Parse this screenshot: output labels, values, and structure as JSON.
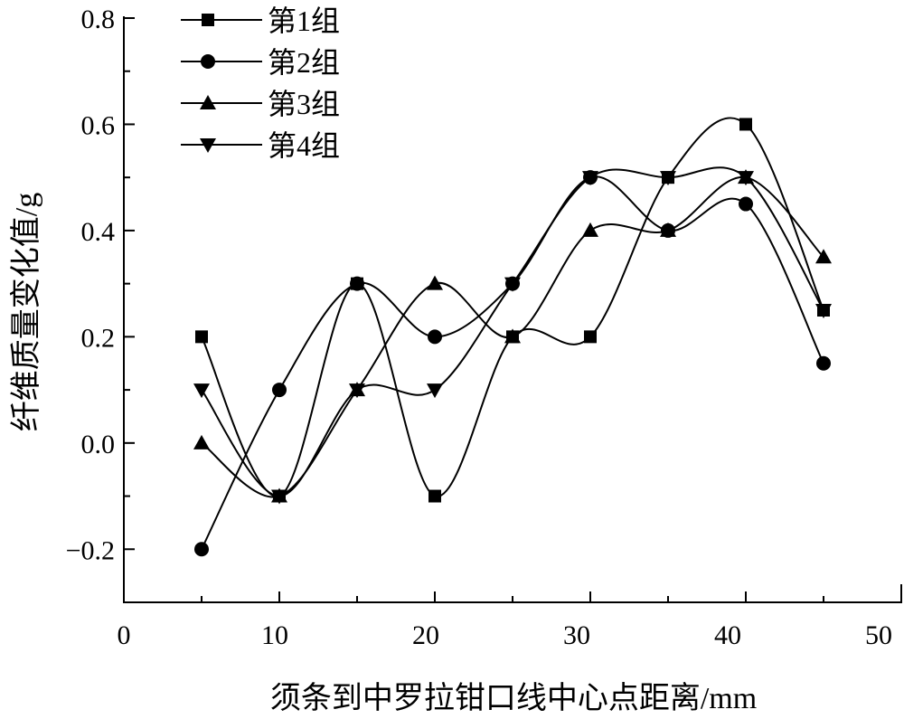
{
  "chart_data": {
    "type": "line",
    "title": "",
    "xlabel": "须条到中罗拉钳口线中心点距离/mm",
    "ylabel": "纤维质量变化值/g",
    "xlim": [
      0,
      50
    ],
    "ylim": [
      -0.3,
      0.8
    ],
    "xticks": [
      "0",
      "10",
      "20",
      "30",
      "40",
      "50"
    ],
    "yticks": [
      "0.8",
      "0.6",
      "0.4",
      "0.2",
      "0.0",
      "−0.2"
    ],
    "grid": false,
    "legend_position": "top-left",
    "smooth": true,
    "x": [
      5,
      10,
      15,
      20,
      25,
      30,
      35,
      40,
      45
    ],
    "series": [
      {
        "name": "第1组",
        "marker": "square",
        "values": [
          0.2,
          -0.1,
          0.3,
          -0.1,
          0.2,
          0.2,
          0.5,
          0.6,
          0.25
        ]
      },
      {
        "name": "第2组",
        "marker": "circle",
        "values": [
          -0.2,
          0.1,
          0.3,
          0.2,
          0.3,
          0.5,
          0.4,
          0.45,
          0.15
        ]
      },
      {
        "name": "第3组",
        "marker": "triangle-up",
        "values": [
          0.0,
          -0.1,
          0.1,
          0.3,
          0.2,
          0.4,
          0.4,
          0.5,
          0.35
        ]
      },
      {
        "name": "第4组",
        "marker": "triangle-down",
        "values": [
          0.1,
          -0.1,
          0.1,
          0.1,
          0.3,
          0.5,
          0.5,
          0.5,
          0.25
        ]
      }
    ],
    "color": "#000000"
  }
}
